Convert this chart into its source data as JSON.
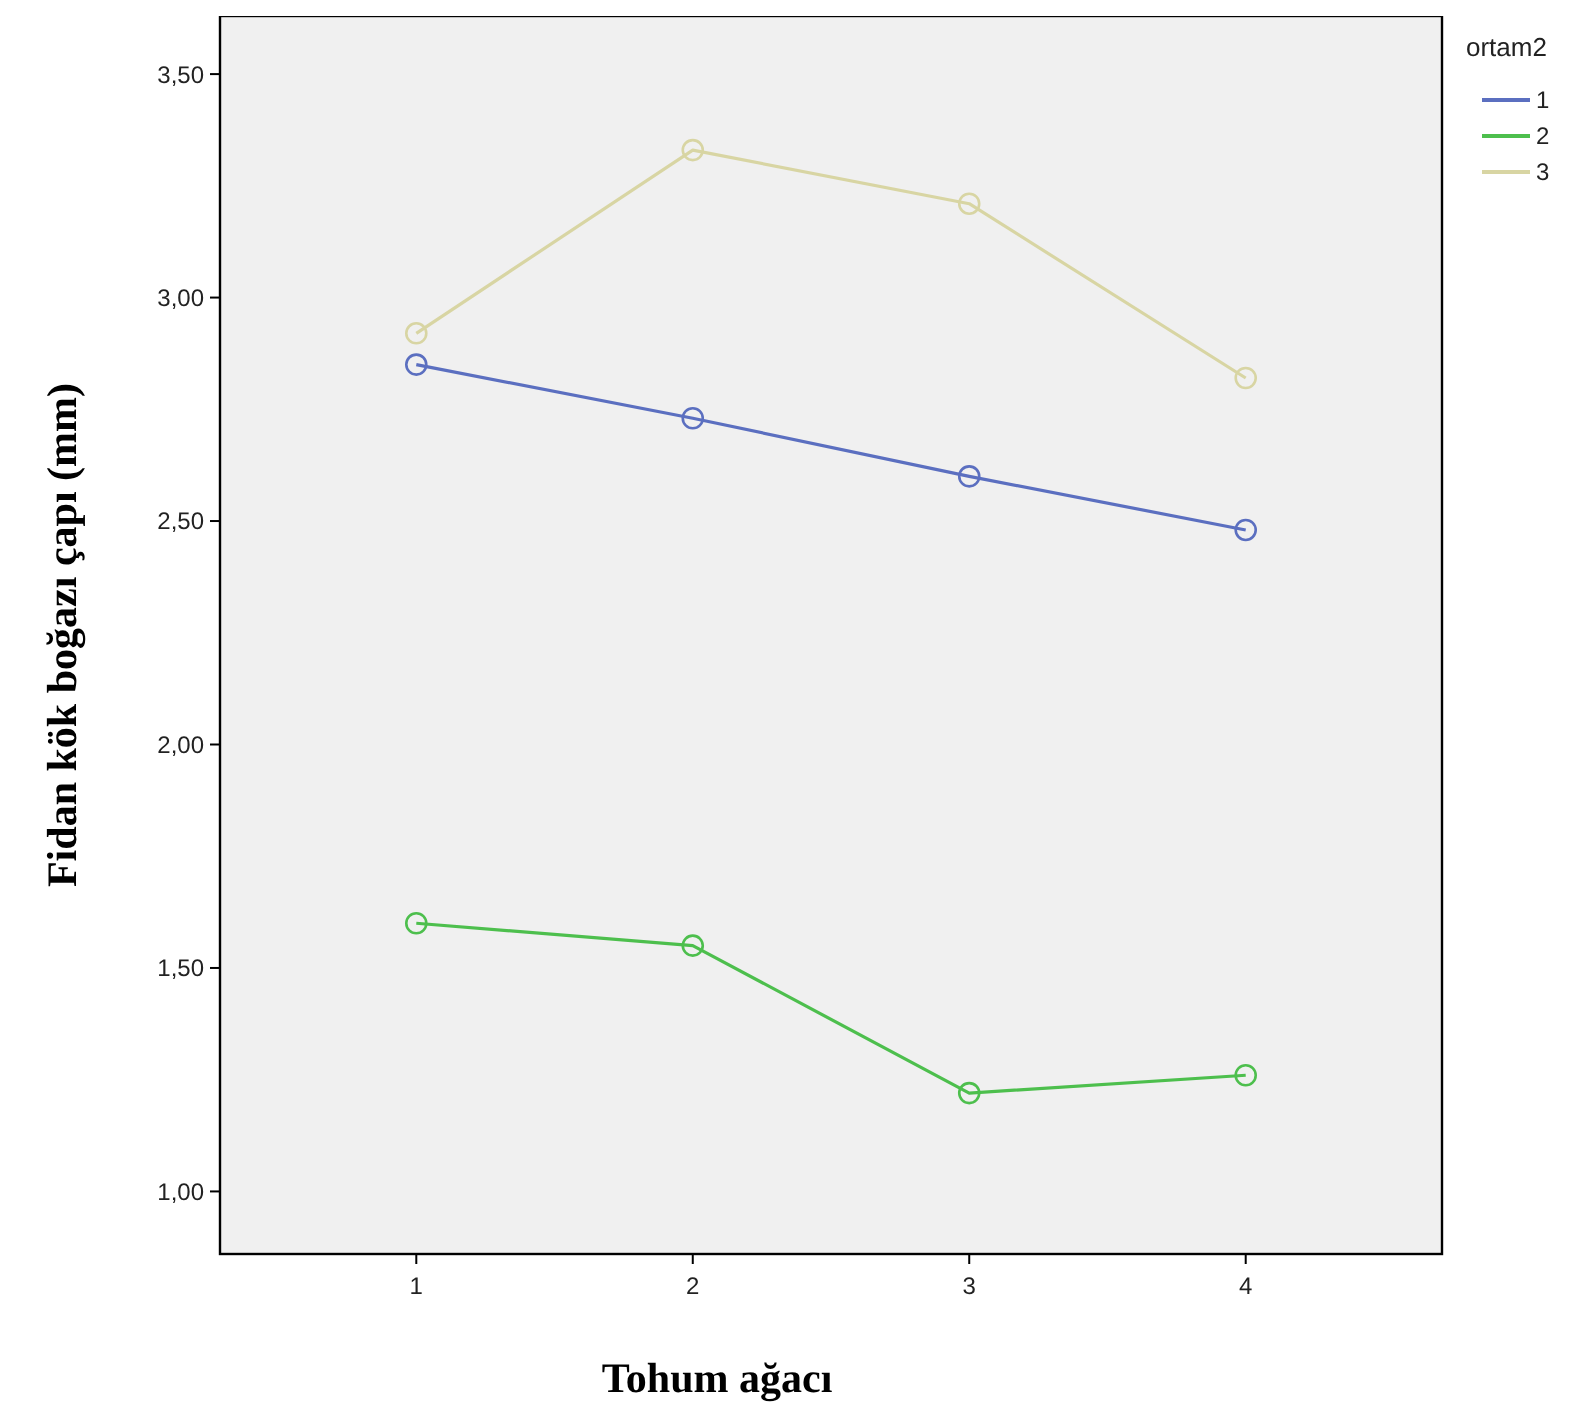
{
  "chart_data": {
    "type": "line",
    "xlabel": "Tohum ağacı",
    "ylabel": "Fidan kök boğazı çapı (mm)",
    "legend_title": "ortam2",
    "categories": [
      "1",
      "2",
      "3",
      "4"
    ],
    "series": [
      {
        "name": "1",
        "color": "#5b6fc0",
        "values": [
          2.85,
          2.73,
          2.6,
          2.48
        ]
      },
      {
        "name": "2",
        "color": "#4dbf4d",
        "values": [
          1.6,
          1.55,
          1.22,
          1.26
        ]
      },
      {
        "name": "3",
        "color": "#d8d5a3",
        "values": [
          2.92,
          3.33,
          3.21,
          2.82
        ]
      }
    ],
    "ylim": [
      0.86,
      3.63
    ],
    "yticks": [
      {
        "value": 1,
        "label": "1,00"
      },
      {
        "value": 1.5,
        "label": "1,50"
      },
      {
        "value": 2,
        "label": "2,00"
      },
      {
        "value": 2.5,
        "label": "2,50"
      },
      {
        "value": 3,
        "label": "3,00"
      },
      {
        "value": 3.5,
        "label": "3,50"
      }
    ],
    "marker": "circle",
    "line_style": "solid",
    "grid": false,
    "legend": "top right"
  }
}
